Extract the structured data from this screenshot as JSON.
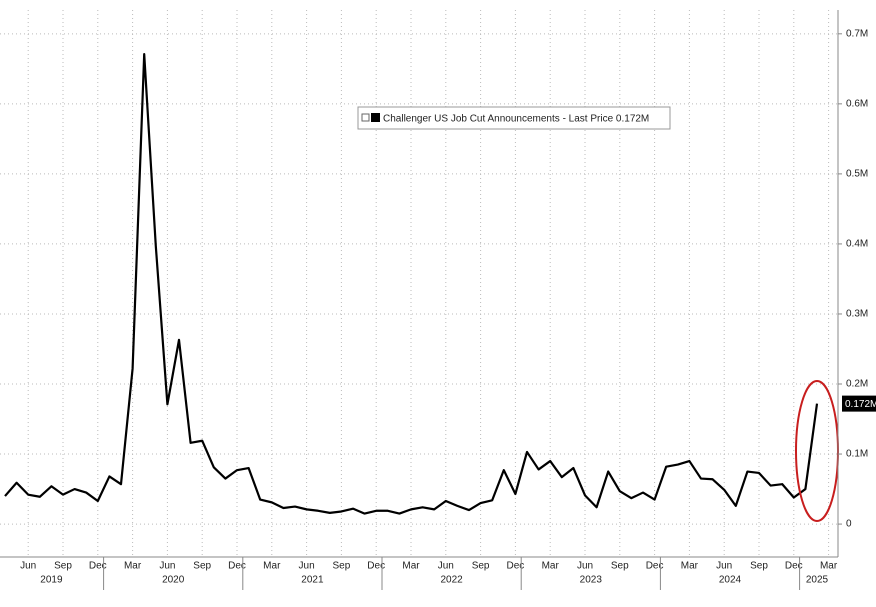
{
  "chart_data": {
    "type": "line",
    "categories": [
      null,
      null,
      "Jun",
      null,
      null,
      "Sep",
      null,
      null,
      "Dec",
      null,
      null,
      "Mar",
      null,
      null,
      "Jun",
      null,
      null,
      "Sep",
      null,
      null,
      "Dec",
      null,
      null,
      "Mar",
      null,
      null,
      "Jun",
      null,
      null,
      "Sep",
      null,
      null,
      "Dec",
      null,
      null,
      "Mar",
      null,
      null,
      "Jun",
      null,
      null,
      "Sep",
      null,
      null,
      "Dec",
      null,
      null,
      "Mar",
      null,
      null,
      "Jun",
      null,
      null,
      "Sep",
      null,
      null,
      "Dec",
      null,
      null,
      "Mar",
      null,
      null,
      "Jun",
      null,
      null,
      "Sep",
      null,
      null,
      "Dec",
      null,
      null,
      "Mar"
    ],
    "years": [
      "2019",
      "2020",
      "2021",
      "2022",
      "2023",
      "2024",
      "2025"
    ],
    "series": [
      {
        "name": "Challenger US Job Cut Announcements",
        "legend_note": "- Last Price 0.172M",
        "color": "#000000",
        "values": [
          0.04,
          0.059,
          0.042,
          0.039,
          0.054,
          0.042,
          0.05,
          0.045,
          0.033,
          0.068,
          0.057,
          0.222,
          0.671,
          0.397,
          0.171,
          0.263,
          0.116,
          0.119,
          0.081,
          0.065,
          0.077,
          0.08,
          0.035,
          0.031,
          0.023,
          0.025,
          0.021,
          0.019,
          0.016,
          0.018,
          0.022,
          0.015,
          0.019,
          0.019,
          0.015,
          0.021,
          0.024,
          0.021,
          0.033,
          0.026,
          0.02,
          0.03,
          0.034,
          0.077,
          0.043,
          0.103,
          0.078,
          0.09,
          0.067,
          0.08,
          0.041,
          0.024,
          0.075,
          0.047,
          0.037,
          0.045,
          0.035,
          0.082,
          0.085,
          0.09,
          0.065,
          0.064,
          0.049,
          0.026,
          0.075,
          0.073,
          0.055,
          0.057,
          0.038,
          0.05,
          0.172,
          null
        ],
        "value_labels": [
          null,
          null,
          null,
          null,
          null,
          null,
          null,
          null,
          null,
          null,
          null,
          null,
          null,
          null,
          null,
          null,
          null,
          null,
          null,
          null,
          null,
          null,
          null,
          null,
          null,
          null,
          null,
          null,
          null,
          null,
          null,
          null,
          null,
          null,
          null,
          null,
          null,
          null,
          null,
          null,
          null,
          null,
          null,
          null,
          null,
          null,
          null,
          null,
          null,
          null,
          null,
          null,
          null,
          null,
          null,
          null,
          null,
          null,
          null,
          null,
          null,
          null,
          null,
          null,
          null,
          null,
          null,
          null,
          null,
          null,
          "0.172M",
          null
        ]
      }
    ],
    "ylim": [
      -0.047,
      0.734
    ],
    "yticks": [
      0,
      {
        "value": 0.1,
        "label": "0.1M"
      },
      {
        "value": 0.2,
        "label": "0.2M"
      },
      {
        "value": 0.3,
        "label": "0.3M"
      },
      {
        "value": 0.4,
        "label": "0.4M"
      },
      {
        "value": 0.5,
        "label": "0.5M"
      },
      {
        "value": 0.6,
        "label": "0.6M"
      },
      {
        "value": 0.7,
        "label": "0.7M"
      }
    ],
    "grid": true
  }
}
